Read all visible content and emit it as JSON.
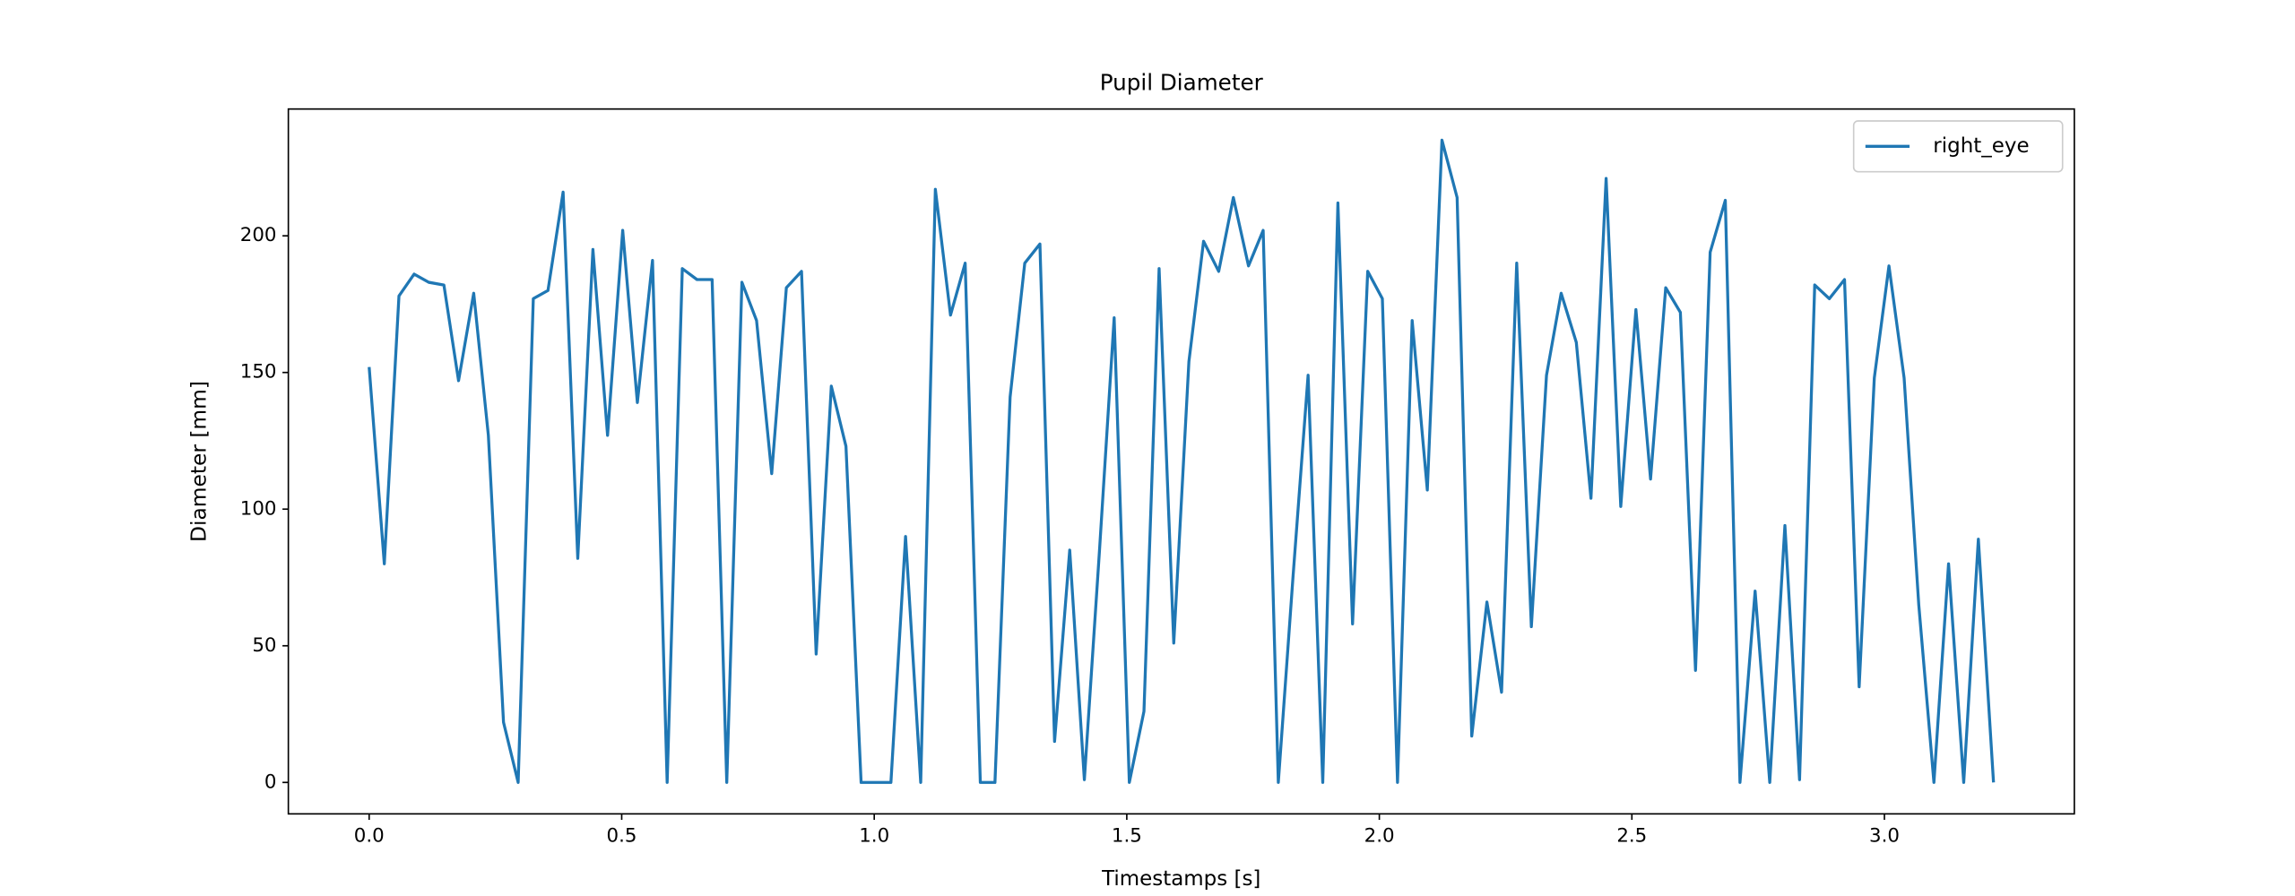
{
  "chart_data": {
    "type": "line",
    "title": "Pupil Diameter",
    "xlabel": "Timestamps [s]",
    "ylabel": "Diameter [mm]",
    "x": [
      0,
      0.03,
      0.059,
      0.089,
      0.118,
      0.148,
      0.177,
      0.207,
      0.236,
      0.266,
      0.295,
      0.325,
      0.354,
      0.384,
      0.413,
      0.443,
      0.472,
      0.502,
      0.531,
      0.561,
      0.59,
      0.62,
      0.649,
      0.679,
      0.708,
      0.738,
      0.767,
      0.797,
      0.826,
      0.856,
      0.885,
      0.915,
      0.944,
      0.974,
      1.003,
      1.033,
      1.062,
      1.092,
      1.121,
      1.151,
      1.18,
      1.21,
      1.239,
      1.269,
      1.298,
      1.328,
      1.357,
      1.387,
      1.416,
      1.446,
      1.475,
      1.505,
      1.534,
      1.564,
      1.593,
      1.623,
      1.652,
      1.682,
      1.711,
      1.741,
      1.77,
      1.8,
      1.829,
      1.859,
      1.888,
      1.918,
      1.947,
      1.977,
      2.006,
      2.036,
      2.065,
      2.095,
      2.124,
      2.154,
      2.183,
      2.213,
      2.242,
      2.272,
      2.301,
      2.331,
      2.36,
      2.39,
      2.419,
      2.449,
      2.478,
      2.508,
      2.537,
      2.567,
      2.596,
      2.626,
      2.655,
      2.685,
      2.714,
      2.744,
      2.773,
      2.803,
      2.832,
      2.862,
      2.891,
      2.921,
      2.95,
      2.98,
      3.009,
      3.039,
      3.068,
      3.098,
      3.127,
      3.157,
      3.186,
      3.216
    ],
    "series": [
      {
        "name": "right_eye",
        "color": "#1f77b4",
        "values": [
          152,
          80,
          178,
          186,
          183,
          182,
          147,
          179,
          127,
          22,
          0,
          177,
          180,
          216,
          82,
          195,
          127,
          202,
          139,
          191,
          0,
          188,
          184,
          184,
          0,
          183,
          169,
          113,
          181,
          187,
          47,
          145,
          123,
          0,
          0,
          0,
          90,
          0,
          217,
          171,
          190,
          0,
          0,
          141,
          190,
          197,
          15,
          85,
          1,
          85,
          170,
          0,
          26,
          188,
          51,
          154,
          198,
          187,
          214,
          189,
          202,
          0,
          75,
          149,
          0,
          212,
          58,
          187,
          177,
          0,
          169,
          107,
          235,
          214,
          17,
          66,
          33,
          190,
          57,
          149,
          179,
          161,
          104,
          221,
          101,
          173,
          111,
          181,
          172,
          41,
          194,
          213,
          0,
          70,
          0,
          94,
          1,
          182,
          177,
          184,
          35,
          148,
          189,
          148,
          65,
          0,
          80,
          0,
          89,
          0
        ]
      }
    ],
    "xlim": [
      -0.16,
      3.376
    ],
    "ylim": [
      -11.5,
      246.4
    ],
    "xticks": [
      {
        "value": 0,
        "label": "0.0"
      },
      {
        "value": 0.5,
        "label": "0.5"
      },
      {
        "value": 1,
        "label": "1.0"
      },
      {
        "value": 1.5,
        "label": "1.5"
      },
      {
        "value": 2,
        "label": "2.0"
      },
      {
        "value": 2.5,
        "label": "2.5"
      },
      {
        "value": 3,
        "label": "3.0"
      }
    ],
    "yticks": [
      0,
      50,
      100,
      150,
      200
    ],
    "grid": false,
    "legend": "upper right"
  }
}
